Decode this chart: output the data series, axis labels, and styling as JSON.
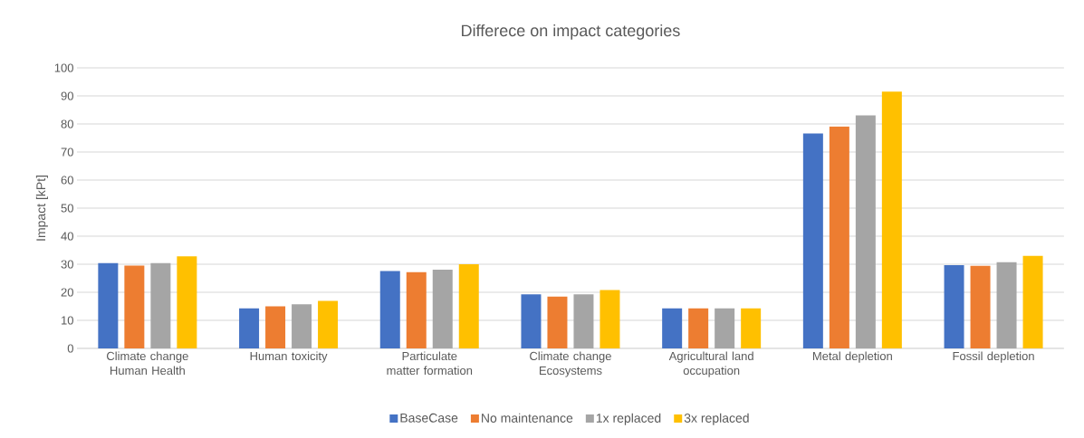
{
  "chart_data": {
    "type": "bar",
    "title": "Differece on impact categories",
    "ylabel": "Impact [kPt]",
    "categories": [
      "Climate change Human Health",
      "Human toxicity",
      "Particulate matter formation",
      "Climate change Ecosystems",
      "Agricultural land occupation",
      "Metal depletion",
      "Fossil depletion"
    ],
    "series": [
      {
        "name": "BaseCase",
        "color": "#4472c4",
        "values": [
          30.4,
          14.3,
          27.6,
          19.3,
          14.3,
          76.6,
          29.7
        ]
      },
      {
        "name": "No maintenance",
        "color": "#ed7d31",
        "values": [
          29.5,
          15.0,
          27.2,
          18.5,
          14.3,
          79.1,
          29.4
        ]
      },
      {
        "name": "1x replaced",
        "color": "#a5a5a5",
        "values": [
          30.4,
          15.7,
          28.1,
          19.3,
          14.3,
          83.1,
          30.7
        ]
      },
      {
        "name": "3x replaced",
        "color": "#ffc000",
        "values": [
          32.8,
          16.9,
          30.0,
          20.8,
          14.3,
          91.5,
          33.0
        ]
      }
    ],
    "ylim": [
      0,
      100
    ],
    "yticks": [
      0,
      10,
      20,
      30,
      40,
      50,
      60,
      70,
      80,
      90,
      100
    ],
    "grid": "y",
    "legend": "bottom"
  }
}
